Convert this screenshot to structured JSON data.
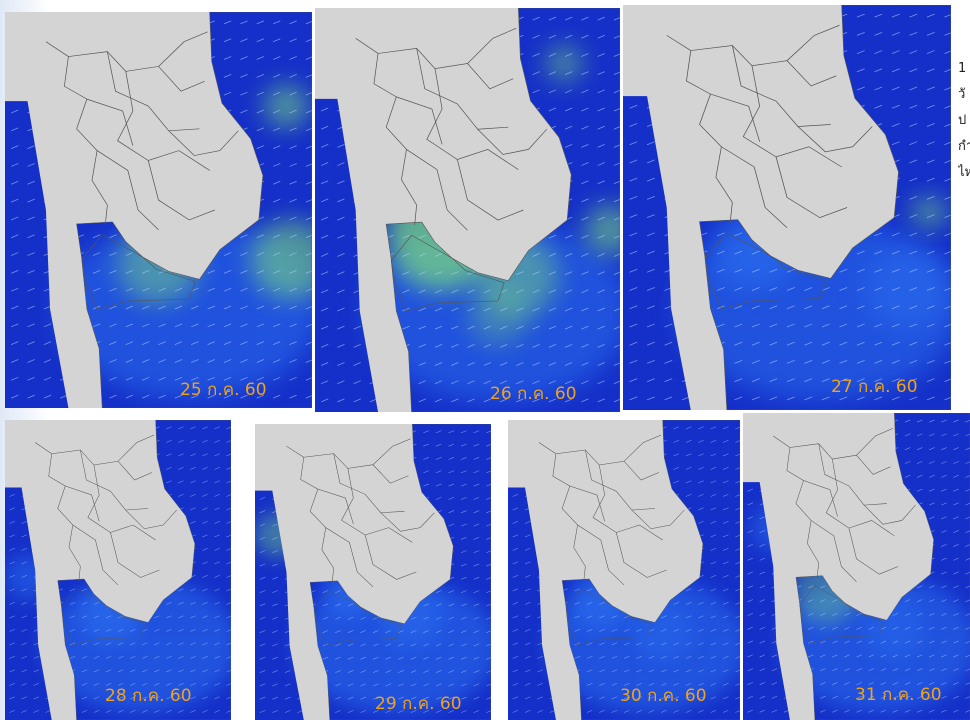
{
  "panels": [
    {
      "id": "p1",
      "date_label": "25 ก.ค. 60"
    },
    {
      "id": "p2",
      "date_label": "26 ก.ค. 60"
    },
    {
      "id": "p3",
      "date_label": "27 ก.ค. 60"
    },
    {
      "id": "p4",
      "date_label": "28 ก.ค. 60"
    },
    {
      "id": "p5",
      "date_label": "29 ก.ค. 60"
    },
    {
      "id": "p6",
      "date_label": "30 ก.ค. 60"
    },
    {
      "id": "p7",
      "date_label": "31 ก.ค. 60"
    }
  ],
  "side_text": [
    "1",
    "วั",
    "ป",
    "กำ",
    "ไห"
  ],
  "colors": {
    "land": "#d4d4d4",
    "border": "#555555",
    "deep_sea": "#1530c8",
    "mid_sea": "#2a70f0",
    "high_wave": "#7fe27a",
    "date_label": "#f0a21a"
  }
}
